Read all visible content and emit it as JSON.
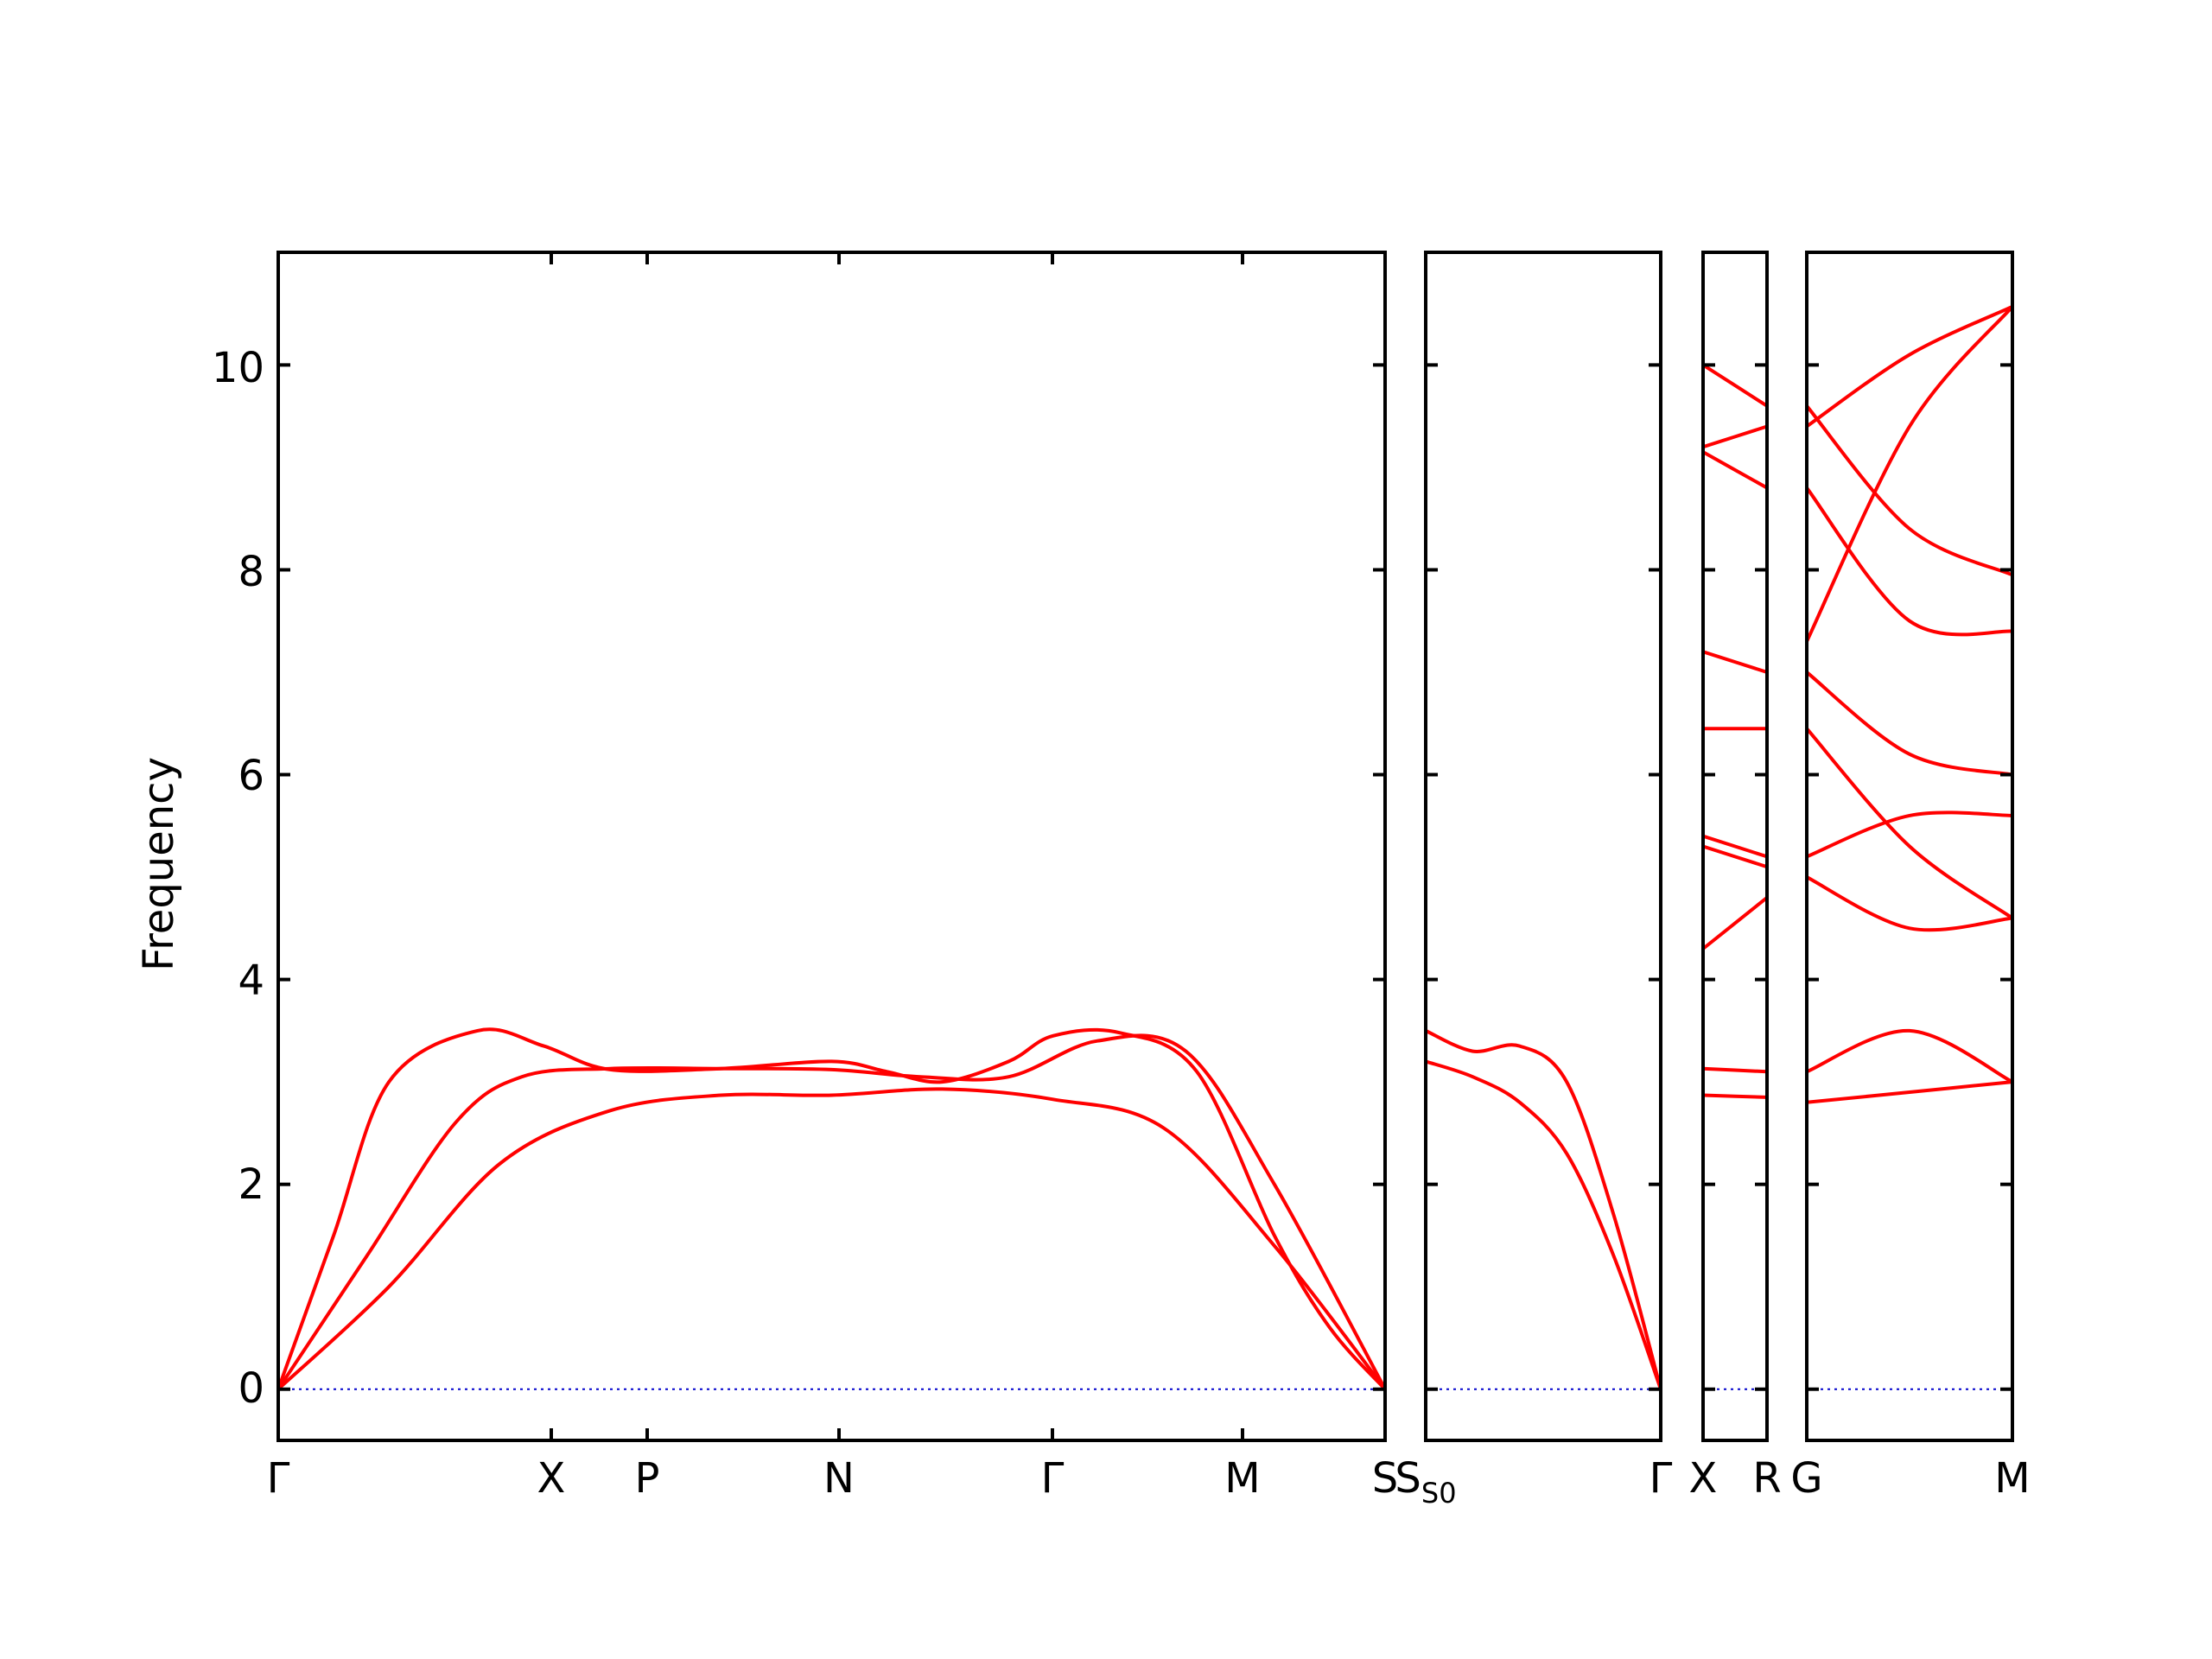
{
  "chart_data": {
    "type": "line",
    "ylabel": "Frequency",
    "ylim": [
      -0.5,
      11.1
    ],
    "yticks": [
      0,
      2,
      4,
      6,
      8,
      10
    ],
    "grid": false,
    "colors": {
      "bands": "#ff0000",
      "zero_line": "#0000cc",
      "axes": "#000000"
    },
    "panels": [
      {
        "name": "panel-1",
        "kpath": [
          "Γ",
          "X",
          "P",
          "N",
          "Γ",
          "M",
          "S"
        ],
        "series": [
          {
            "x": [
              0,
              0.05,
              0.1,
              0.18,
              0.24,
              0.3,
              0.4,
              0.5,
              0.55,
              0.6,
              0.66,
              0.7,
              0.76,
              0.83,
              0.9,
              0.95,
              1
            ],
            "values": [
              0,
              1.5,
              3.0,
              3.5,
              3.35,
              3.12,
              3.13,
              3.2,
              3.1,
              3.0,
              3.2,
              3.45,
              3.48,
              3.1,
              1.5,
              0.6,
              0
            ]
          },
          {
            "x": [
              0,
              0.08,
              0.16,
              0.22,
              0.3,
              0.4,
              0.5,
              0.58,
              0.66,
              0.74,
              0.82,
              0.9,
              1
            ],
            "values": [
              0,
              1.3,
              2.6,
              3.05,
              3.13,
              3.13,
              3.12,
              3.05,
              3.05,
              3.4,
              3.3,
              2.0,
              0
            ]
          },
          {
            "x": [
              0,
              0.1,
              0.2,
              0.3,
              0.4,
              0.5,
              0.6,
              0.7,
              0.8,
              0.9,
              1
            ],
            "values": [
              0,
              1.0,
              2.2,
              2.72,
              2.87,
              2.87,
              2.93,
              2.83,
              2.55,
              1.4,
              0
            ]
          }
        ]
      },
      {
        "name": "panel-2",
        "kpath": [
          "S0",
          "Γ"
        ],
        "series": [
          {
            "x": [
              0,
              0.2,
              0.4,
              0.6,
              0.8,
              1
            ],
            "values": [
              3.5,
              3.3,
              3.35,
              3.0,
              1.7,
              0
            ]
          },
          {
            "x": [
              0,
              0.2,
              0.4,
              0.6,
              0.8,
              1
            ],
            "values": [
              3.2,
              3.05,
              2.8,
              2.3,
              1.3,
              0
            ]
          }
        ]
      },
      {
        "name": "panel-3",
        "kpath": [
          "X",
          "R"
        ],
        "series": [
          {
            "x": [
              0,
              1
            ],
            "values": [
              10.0,
              9.6
            ]
          },
          {
            "x": [
              0,
              1
            ],
            "values": [
              9.2,
              9.4
            ]
          },
          {
            "x": [
              0,
              1
            ],
            "values": [
              9.15,
              8.8
            ]
          },
          {
            "x": [
              0,
              1
            ],
            "values": [
              7.2,
              7.0
            ]
          },
          {
            "x": [
              0,
              1
            ],
            "values": [
              6.45,
              6.45
            ]
          },
          {
            "x": [
              0,
              1
            ],
            "values": [
              5.4,
              5.2
            ]
          },
          {
            "x": [
              0,
              1
            ],
            "values": [
              5.3,
              5.1
            ]
          },
          {
            "x": [
              0,
              1
            ],
            "values": [
              4.3,
              4.8
            ]
          },
          {
            "x": [
              0,
              1
            ],
            "values": [
              3.13,
              3.1
            ]
          },
          {
            "x": [
              0,
              1
            ],
            "values": [
              2.87,
              2.85
            ]
          }
        ]
      },
      {
        "name": "panel-4",
        "kpath": [
          "G",
          "M"
        ],
        "series": [
          {
            "x": [
              0,
              0.5,
              1
            ],
            "values": [
              9.4,
              10.1,
              10.57
            ]
          },
          {
            "x": [
              0,
              0.5,
              1
            ],
            "values": [
              7.3,
              9.4,
              10.57
            ]
          },
          {
            "x": [
              0,
              0.5,
              1
            ],
            "values": [
              9.6,
              8.4,
              7.95
            ]
          },
          {
            "x": [
              0,
              0.5,
              1
            ],
            "values": [
              8.8,
              7.5,
              7.4
            ]
          },
          {
            "x": [
              0,
              0.5,
              1
            ],
            "values": [
              7.0,
              6.2,
              6.0
            ]
          },
          {
            "x": [
              0,
              0.5,
              1
            ],
            "values": [
              6.45,
              5.3,
              4.6
            ]
          },
          {
            "x": [
              0,
              0.5,
              1
            ],
            "values": [
              5.2,
              5.6,
              5.6
            ]
          },
          {
            "x": [
              0,
              0.5,
              1
            ],
            "values": [
              5.0,
              4.5,
              4.6
            ]
          },
          {
            "x": [
              0,
              0.5,
              1
            ],
            "values": [
              3.1,
              3.5,
              3.0
            ]
          },
          {
            "x": [
              0,
              0.5,
              1
            ],
            "values": [
              2.8,
              2.9,
              3.0
            ]
          }
        ]
      }
    ]
  }
}
